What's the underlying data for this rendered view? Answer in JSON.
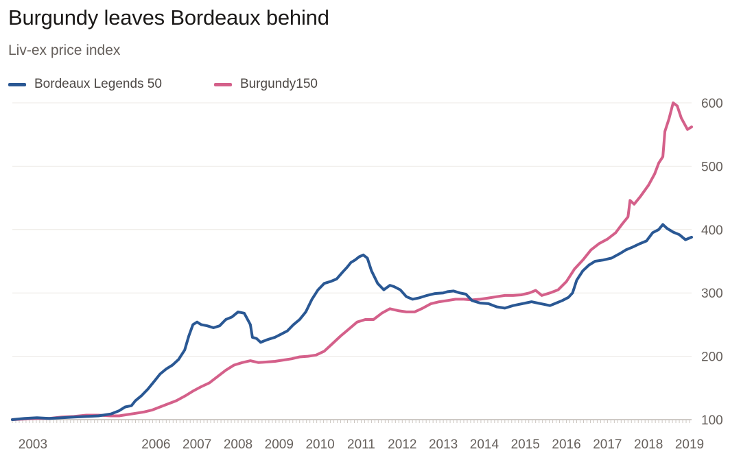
{
  "chart_data": {
    "type": "line",
    "title": "Burgundy leaves Bordeaux behind",
    "subtitle": "Liv-ex price index",
    "xlabel": "",
    "ylabel": "",
    "xlim": [
      2003.0,
      2019.55
    ],
    "ylim": [
      100,
      600
    ],
    "y_ticks": [
      100,
      200,
      300,
      400,
      500,
      600
    ],
    "x_ticks": [
      "2003",
      "2006",
      "2007",
      "2008",
      "2009",
      "2010",
      "2011",
      "2012",
      "2013",
      "2014",
      "2015",
      "2016",
      "2017",
      "2018",
      "2019"
    ],
    "grid": true,
    "legend": "top-left",
    "series": [
      {
        "name": "Bordeaux Legends 50",
        "color": "#2a5894",
        "x": [
          2003.0,
          2003.3,
          2003.6,
          2003.9,
          2004.2,
          2004.5,
          2004.8,
          2005.1,
          2005.4,
          2005.6,
          2005.75,
          2005.9,
          2006.0,
          2006.15,
          2006.3,
          2006.45,
          2006.6,
          2006.75,
          2006.9,
          2007.05,
          2007.2,
          2007.3,
          2007.4,
          2007.5,
          2007.6,
          2007.75,
          2007.9,
          2008.05,
          2008.2,
          2008.35,
          2008.5,
          2008.65,
          2008.8,
          2008.85,
          2008.95,
          2009.05,
          2009.2,
          2009.3,
          2009.4,
          2009.55,
          2009.7,
          2009.85,
          2010.0,
          2010.15,
          2010.3,
          2010.45,
          2010.6,
          2010.75,
          2010.9,
          2011.05,
          2011.15,
          2011.25,
          2011.35,
          2011.45,
          2011.55,
          2011.65,
          2011.75,
          2011.9,
          2012.05,
          2012.2,
          2012.3,
          2012.45,
          2012.6,
          2012.75,
          2012.9,
          2013.1,
          2013.3,
          2013.5,
          2013.6,
          2013.75,
          2013.9,
          2014.05,
          2014.2,
          2014.4,
          2014.6,
          2014.8,
          2015.0,
          2015.2,
          2015.35,
          2015.5,
          2015.65,
          2015.8,
          2015.95,
          2016.1,
          2016.25,
          2016.4,
          2016.55,
          2016.65,
          2016.75,
          2016.9,
          2017.05,
          2017.2,
          2017.4,
          2017.6,
          2017.8,
          2017.95,
          2018.1,
          2018.3,
          2018.45,
          2018.6,
          2018.75,
          2018.85,
          2018.95,
          2019.1,
          2019.25,
          2019.4,
          2019.55
        ],
        "values": [
          100,
          102,
          103,
          102,
          103,
          104,
          105,
          106,
          109,
          114,
          120,
          122,
          130,
          138,
          148,
          160,
          172,
          180,
          186,
          195,
          210,
          232,
          250,
          254,
          250,
          248,
          245,
          248,
          258,
          262,
          270,
          268,
          250,
          230,
          228,
          222,
          226,
          228,
          230,
          235,
          240,
          250,
          258,
          270,
          290,
          305,
          315,
          318,
          322,
          333,
          340,
          348,
          352,
          357,
          360,
          355,
          335,
          315,
          305,
          312,
          310,
          305,
          294,
          290,
          292,
          296,
          299,
          300,
          302,
          303,
          300,
          298,
          288,
          284,
          283,
          278,
          276,
          280,
          282,
          284,
          286,
          284,
          282,
          280,
          284,
          288,
          293,
          300,
          320,
          335,
          344,
          350,
          352,
          355,
          362,
          368,
          372,
          378,
          382,
          395,
          400,
          408,
          402,
          396,
          392,
          384,
          388
        ]
      },
      {
        "name": "Burgundy150",
        "color": "#d4608a",
        "x": [
          2003.0,
          2003.3,
          2003.6,
          2003.9,
          2004.2,
          2004.5,
          2004.8,
          2005.1,
          2005.4,
          2005.6,
          2005.8,
          2006.0,
          2006.2,
          2006.4,
          2006.6,
          2006.8,
          2007.0,
          2007.2,
          2007.4,
          2007.6,
          2007.8,
          2008.0,
          2008.2,
          2008.4,
          2008.6,
          2008.8,
          2009.0,
          2009.2,
          2009.4,
          2009.6,
          2009.8,
          2010.0,
          2010.2,
          2010.4,
          2010.6,
          2010.8,
          2011.0,
          2011.2,
          2011.4,
          2011.6,
          2011.8,
          2012.0,
          2012.2,
          2012.4,
          2012.6,
          2012.8,
          2013.0,
          2013.2,
          2013.4,
          2013.6,
          2013.8,
          2014.0,
          2014.2,
          2014.4,
          2014.6,
          2014.8,
          2015.0,
          2015.2,
          2015.4,
          2015.6,
          2015.75,
          2015.9,
          2016.1,
          2016.3,
          2016.5,
          2016.7,
          2016.9,
          2017.1,
          2017.3,
          2017.5,
          2017.7,
          2017.85,
          2018.0,
          2018.05,
          2018.15,
          2018.3,
          2018.5,
          2018.65,
          2018.75,
          2018.85,
          2018.9,
          2019.0,
          2019.1,
          2019.2,
          2019.3,
          2019.45,
          2019.55
        ],
        "values": [
          100,
          101,
          102,
          102,
          104,
          105,
          107,
          107,
          106,
          106,
          108,
          110,
          112,
          115,
          120,
          125,
          130,
          137,
          145,
          152,
          158,
          168,
          178,
          186,
          190,
          193,
          190,
          191,
          192,
          194,
          196,
          199,
          200,
          202,
          208,
          220,
          232,
          243,
          254,
          258,
          258,
          268,
          275,
          272,
          270,
          270,
          276,
          283,
          286,
          288,
          290,
          290,
          289,
          290,
          292,
          294,
          296,
          296,
          297,
          300,
          304,
          296,
          300,
          305,
          318,
          338,
          352,
          368,
          378,
          385,
          395,
          408,
          420,
          446,
          440,
          452,
          470,
          488,
          505,
          515,
          555,
          575,
          600,
          595,
          576,
          558,
          562
        ]
      }
    ]
  }
}
